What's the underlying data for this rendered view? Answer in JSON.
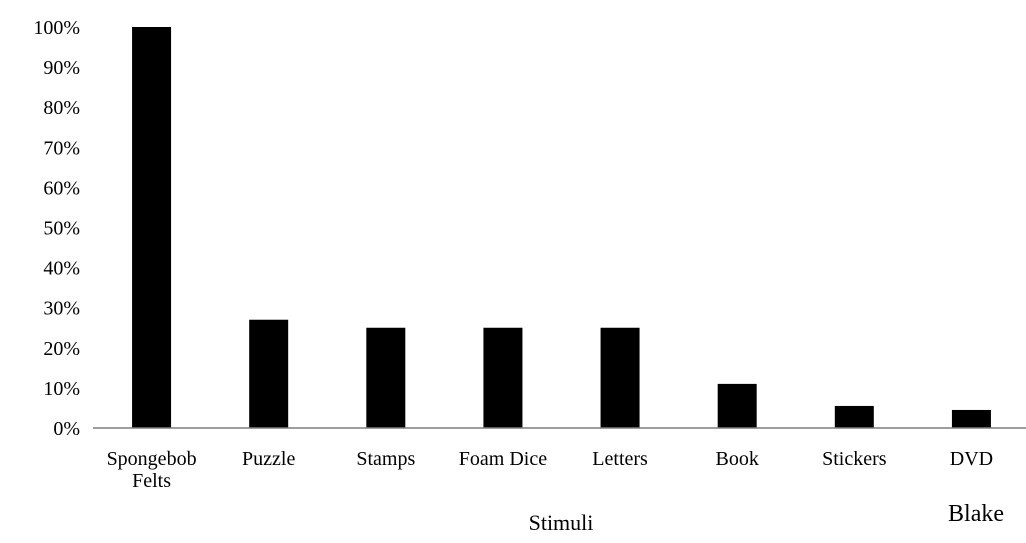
{
  "chart_data": {
    "type": "bar",
    "categories": [
      [
        "Spongebob",
        "Felts"
      ],
      [
        "Puzzle"
      ],
      [
        "Stamps"
      ],
      [
        "Foam Dice"
      ],
      [
        "Letters"
      ],
      [
        "Book"
      ],
      [
        "Stickers"
      ],
      [
        "DVD"
      ]
    ],
    "values": [
      100,
      27,
      25,
      25,
      25,
      11,
      5.5,
      4.5
    ],
    "ylim": [
      0,
      100
    ],
    "yticks": [
      0,
      10,
      20,
      30,
      40,
      50,
      60,
      70,
      80,
      90,
      100
    ],
    "ytick_labels": [
      "0%",
      "10%",
      "20%",
      "30%",
      "40%",
      "50%",
      "60%",
      "70%",
      "80%",
      "90%",
      "100%"
    ],
    "xlabel": "Stimuli",
    "ylabel": "",
    "annotation": "Blake",
    "grid": false,
    "bar_color": "#000000",
    "axis_color": "#7f7f7f"
  }
}
